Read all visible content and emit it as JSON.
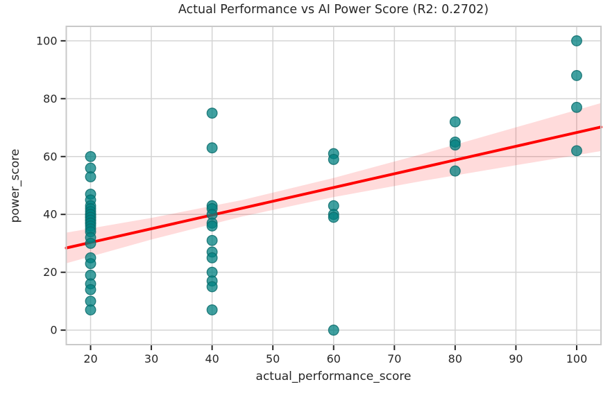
{
  "chart_data": {
    "type": "scatter",
    "title": "Actual Performance vs AI Power Score (R2: 0.2702)",
    "xlabel": "actual_performance_score",
    "ylabel": "power_score",
    "r_squared": 0.2702,
    "xlim": [
      16,
      104
    ],
    "ylim": [
      -5,
      105
    ],
    "x_ticks": [
      20,
      30,
      40,
      50,
      60,
      70,
      80,
      90,
      100
    ],
    "y_ticks": [
      0,
      20,
      40,
      60,
      80,
      100
    ],
    "grid": true,
    "legend": null,
    "points": [
      [
        20,
        60
      ],
      [
        20,
        56
      ],
      [
        20,
        53
      ],
      [
        20,
        47
      ],
      [
        20,
        45
      ],
      [
        20,
        43
      ],
      [
        20,
        42
      ],
      [
        20,
        41
      ],
      [
        20,
        40
      ],
      [
        20,
        40
      ],
      [
        20,
        39
      ],
      [
        20,
        39
      ],
      [
        20,
        38
      ],
      [
        20,
        38
      ],
      [
        20,
        37
      ],
      [
        20,
        37
      ],
      [
        20,
        36
      ],
      [
        20,
        35
      ],
      [
        20,
        34
      ],
      [
        20,
        32
      ],
      [
        20,
        30
      ],
      [
        20,
        25
      ],
      [
        20,
        23
      ],
      [
        20,
        19
      ],
      [
        20,
        16
      ],
      [
        20,
        14
      ],
      [
        20,
        10
      ],
      [
        20,
        7
      ],
      [
        40,
        75
      ],
      [
        40,
        63
      ],
      [
        40,
        43
      ],
      [
        40,
        42
      ],
      [
        40,
        40
      ],
      [
        40,
        37
      ],
      [
        40,
        36
      ],
      [
        40,
        31
      ],
      [
        40,
        27
      ],
      [
        40,
        25
      ],
      [
        40,
        20
      ],
      [
        40,
        17
      ],
      [
        40,
        15
      ],
      [
        40,
        7
      ],
      [
        60,
        61
      ],
      [
        60,
        59
      ],
      [
        60,
        43
      ],
      [
        60,
        40
      ],
      [
        60,
        39
      ],
      [
        60,
        0
      ],
      [
        80,
        72
      ],
      [
        80,
        65
      ],
      [
        80,
        64
      ],
      [
        80,
        55
      ],
      [
        100,
        100
      ],
      [
        100,
        88
      ],
      [
        100,
        77
      ],
      [
        100,
        62
      ]
    ],
    "regression_line": {
      "x": [
        16,
        104
      ],
      "y": [
        28.4,
        70.2
      ]
    },
    "ci_band": {
      "x": [
        16,
        30,
        45,
        60,
        75,
        90,
        104
      ],
      "upper": [
        33.7,
        38.8,
        45.0,
        52.6,
        61.1,
        70.1,
        78.5
      ],
      "lower": [
        23.1,
        31.3,
        39.3,
        46.0,
        51.7,
        57.0,
        61.9
      ]
    },
    "colors": {
      "point_fill": "#008080",
      "point_edge": "#0b6b6b",
      "line": "#ff0000",
      "band": "#ff0000",
      "grid": "#d4d4d4",
      "spine": "#c9c9c9",
      "text": "#262626"
    }
  }
}
